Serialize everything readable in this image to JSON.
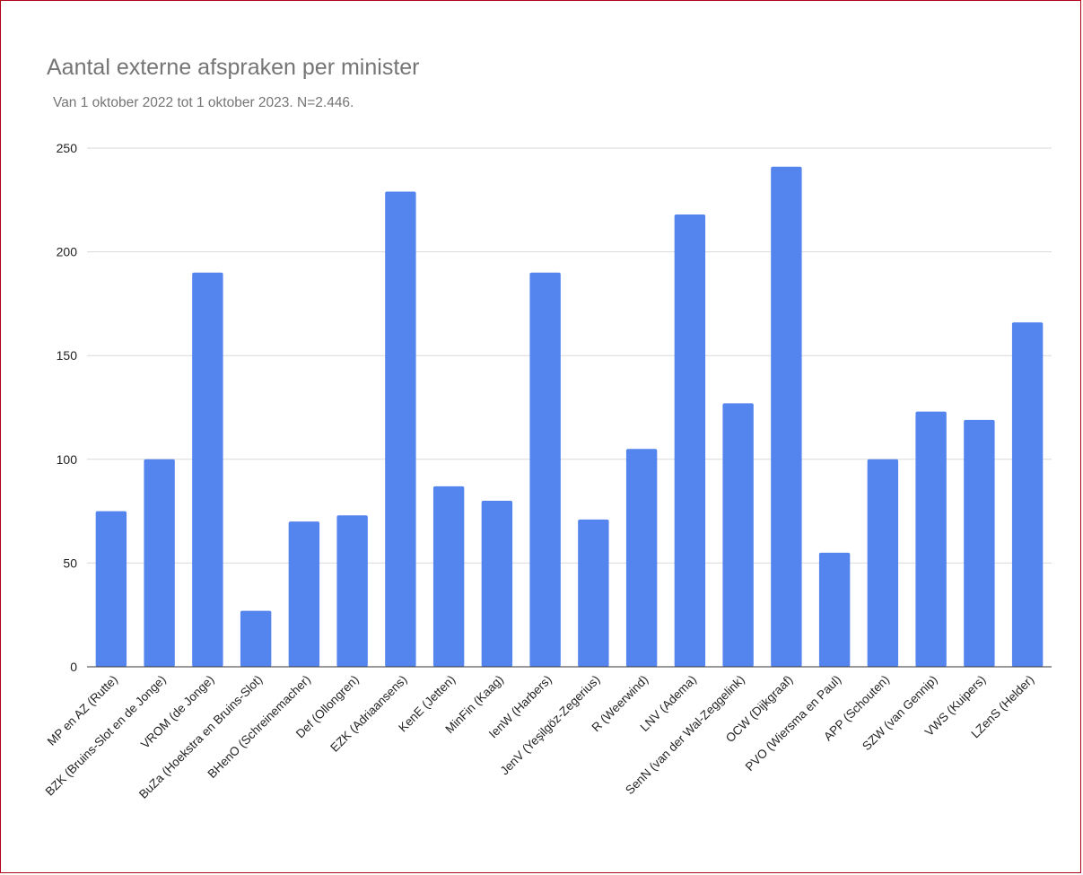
{
  "chart_data": {
    "type": "bar",
    "title": "Aantal externe afspraken per minister",
    "subtitle": "Van 1 oktober 2022 tot 1 oktober 2023. N=2.446.",
    "xlabel": "",
    "ylabel": "",
    "ylim": [
      0,
      250
    ],
    "yticks": [
      0,
      50,
      100,
      150,
      200,
      250
    ],
    "grid": true,
    "legend": "none",
    "bar_color": "#5484ed",
    "categories": [
      "MP en AZ (Rutte)",
      "BZK (Bruins-Slot en de Jonge)",
      "VROM (de Jonge)",
      "BuZa (Hoekstra en Bruins-Slot)",
      "BHenO (Schreinemacher)",
      "Def (Ollongren)",
      "EZK (Adriaansens)",
      "KenE (Jetten)",
      "MinFin (Kaag)",
      "IenW (Harbers)",
      "JenV (Yeşilgöz-Zegerius)",
      "R (Weerwind)",
      "LNV (Adema)",
      "SenN (van der Wal-Zeggelink)",
      "OCW (Dijkgraaf)",
      "PVO (Wiersma en Paul)",
      "APP (Schouten)",
      "SZW (van Gennip)",
      "VWS (Kuipers)",
      "LZenS (Helder)"
    ],
    "values": [
      75,
      100,
      190,
      27,
      70,
      73,
      229,
      87,
      80,
      190,
      71,
      105,
      218,
      127,
      241,
      55,
      100,
      123,
      119,
      166
    ]
  }
}
